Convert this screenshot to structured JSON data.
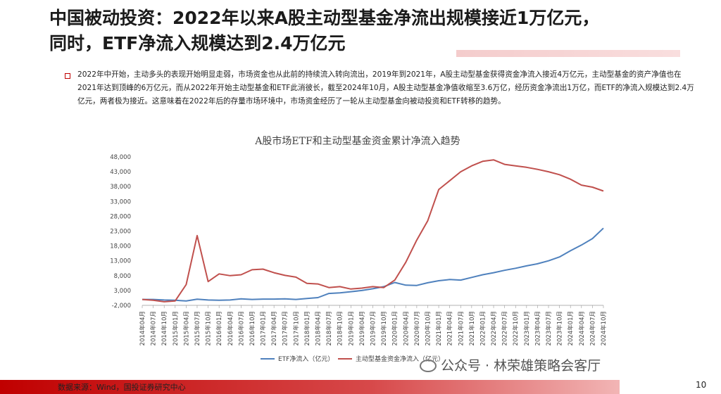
{
  "header": {
    "title_line1": "中国被动投资：2022年以来A股主动型基金净流出规模接近1万亿元，",
    "title_line2": "同时，ETF净流入规模达到2.4万亿元"
  },
  "summary": {
    "text": "2022年中开始，主动多头的表现开始明显走弱，市场资金也从此前的持续流入转向流出，2019年到2021年，A股主动型基金获得资金净流入接近4万亿元，主动型基金的资产净值也在2021年达到顶峰的6万亿元，而从2022年开始主动型基金和ETF此消彼长，截至2024年10月，A股主动型基金净值收缩至3.6万亿，经历资金净流出1万亿，而ETF的净流入规模达到2.4万亿元，两者极为接近。这意味着在2022年后的存量市场环境中，市场资金经历了一轮从主动型基金向被动投资和ETF转移的趋势。"
  },
  "chart_data": {
    "type": "line",
    "title": "A股市场ETF和主动型基金资金累计净流入趋势",
    "xlabel": "",
    "ylabel": "",
    "ylim": [
      -2000,
      48000
    ],
    "yticks": [
      "48,000",
      "43,000",
      "38,000",
      "33,000",
      "28,000",
      "23,000",
      "18,000",
      "13,000",
      "8,000",
      "3,000",
      "-2,000"
    ],
    "x": [
      "2014年04月",
      "2014年07月",
      "2014年10月",
      "2015年01月",
      "2015年04月",
      "2015年07月",
      "2015年10月",
      "2016年01月",
      "2016年04月",
      "2016年07月",
      "2016年10月",
      "2017年01月",
      "2017年04月",
      "2017年07月",
      "2017年10月",
      "2018年01月",
      "2018年04月",
      "2018年07月",
      "2018年10月",
      "2019年01月",
      "2019年04月",
      "2019年07月",
      "2019年10月",
      "2020年01月",
      "2020年04月",
      "2020年07月",
      "2020年10月",
      "2021年01月",
      "2021年04月",
      "2021年07月",
      "2021年10月",
      "2022年01月",
      "2022年04月",
      "2022年07月",
      "2022年10月",
      "2023年01月",
      "2023年04月",
      "2023年07月",
      "2023年10月",
      "2024年01月",
      "2024年04月",
      "2024年07月",
      "2024年10月"
    ],
    "legend_position": "bottom",
    "grid": false,
    "series": [
      {
        "name": "ETF净流入（亿元）",
        "color": "#4f81bd",
        "values": [
          0,
          0,
          -200,
          -300,
          -500,
          50,
          -200,
          -300,
          -200,
          200,
          0,
          100,
          100,
          200,
          0,
          300,
          600,
          2000,
          2200,
          2600,
          3000,
          3600,
          4300,
          5700,
          4800,
          4700,
          5600,
          6300,
          6700,
          6500,
          7400,
          8300,
          9000,
          9800,
          10500,
          11300,
          12000,
          13000,
          14300,
          16400,
          18300,
          20500,
          24000
        ]
      },
      {
        "name": "主动型基金资金净流入（亿元）",
        "color": "#c0504d",
        "values": [
          0,
          -300,
          -800,
          -500,
          5000,
          21500,
          6000,
          8600,
          8000,
          8300,
          10000,
          10200,
          9000,
          8100,
          7500,
          5400,
          5200,
          4000,
          4300,
          3500,
          3800,
          4300,
          4000,
          6500,
          12500,
          20000,
          26500,
          37000,
          40000,
          43000,
          45000,
          46500,
          47000,
          45500,
          45000,
          44500,
          43800,
          43000,
          42000,
          40500,
          38500,
          37800,
          36500
        ]
      }
    ]
  },
  "watermark": {
    "text": "公众号 · 林荣雄策略会客厅"
  },
  "footer": {
    "source": "数据来源：Wind，国投证券研究中心",
    "page_number": "10"
  }
}
